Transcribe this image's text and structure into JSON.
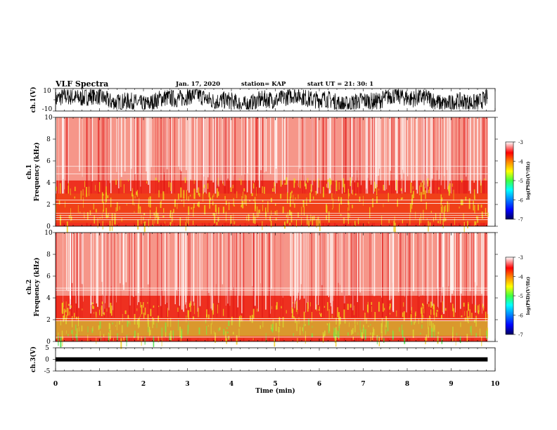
{
  "header": {
    "title": "VLF Spectra",
    "date": "Jan. 17, 2020",
    "station": "station= KAP",
    "start": "start UT = 21: 30: 1"
  },
  "colors": {
    "spec_bg": "#ee3020",
    "spec_white": "#ffffff",
    "spec_yellow": "#f0d020",
    "spec_green": "#40e040",
    "colorbar": [
      "#000060",
      "#0000ff",
      "#0080ff",
      "#00ffff",
      "#40ff40",
      "#ffff00",
      "#ff8000",
      "#ff0000",
      "#ffffff"
    ]
  },
  "chart_data": [
    {
      "type": "line",
      "name": "ch1-waveform",
      "ylabel": "ch.1(V)",
      "yticks": [
        "10",
        "-10"
      ],
      "ylim": [
        -10,
        10
      ],
      "xlim": [
        0,
        10
      ],
      "data_end_min": 9.83,
      "description_of_signal": "dense oscillating waveform saturating between about -8 and 9 V"
    },
    {
      "type": "heatmap",
      "name": "ch1-spectrogram",
      "ylabel_top": "ch.1",
      "ylabel": "Frequency (kHz)",
      "yticks": [
        "0",
        "2",
        "4",
        "6",
        "8",
        "10"
      ],
      "ylim": [
        0,
        10
      ],
      "xlim": [
        0,
        10
      ],
      "data_end_min": 9.83,
      "colorbar": {
        "ticks": [
          "-3",
          "-4",
          "-5",
          "-6",
          "-7"
        ],
        "label": "log(PSD)(V²/Hz)"
      },
      "dominant_bands_khz": [
        [
          0.3,
          3.0
        ]
      ],
      "white_lines_khz": [
        0.6,
        0.8,
        1.0,
        1.2,
        2.1,
        2.4,
        4.8,
        5.5
      ]
    },
    {
      "type": "heatmap",
      "name": "ch2-spectrogram",
      "ylabel_top": "ch.2",
      "ylabel": "Frequency (kHz)",
      "yticks": [
        "0",
        "2",
        "4",
        "6",
        "8",
        "10"
      ],
      "ylim": [
        0,
        10
      ],
      "xlim": [
        0,
        10
      ],
      "data_end_min": 9.83,
      "colorbar": {
        "ticks": [
          "-3",
          "-4",
          "-5",
          "-6",
          "-7"
        ],
        "label": "log(PSD)(V²/Hz)"
      },
      "dominant_bands_khz": [
        [
          0.3,
          2.2
        ]
      ],
      "white_lines_khz": [
        0.4,
        1.9,
        2.1,
        4.7,
        4.9
      ]
    },
    {
      "type": "line",
      "name": "ch3-waveform",
      "ylabel": "ch.3(V)",
      "yticks": [
        "5",
        "0",
        "-5"
      ],
      "ylim": [
        -5,
        5
      ],
      "xlim": [
        0,
        10
      ],
      "data_end_min": 9.83,
      "level_v": 0.0
    }
  ],
  "x_axis": {
    "label": "Time (min)",
    "ticks": [
      "0",
      "1",
      "2",
      "3",
      "4",
      "5",
      "6",
      "7",
      "8",
      "9",
      "10"
    ]
  }
}
